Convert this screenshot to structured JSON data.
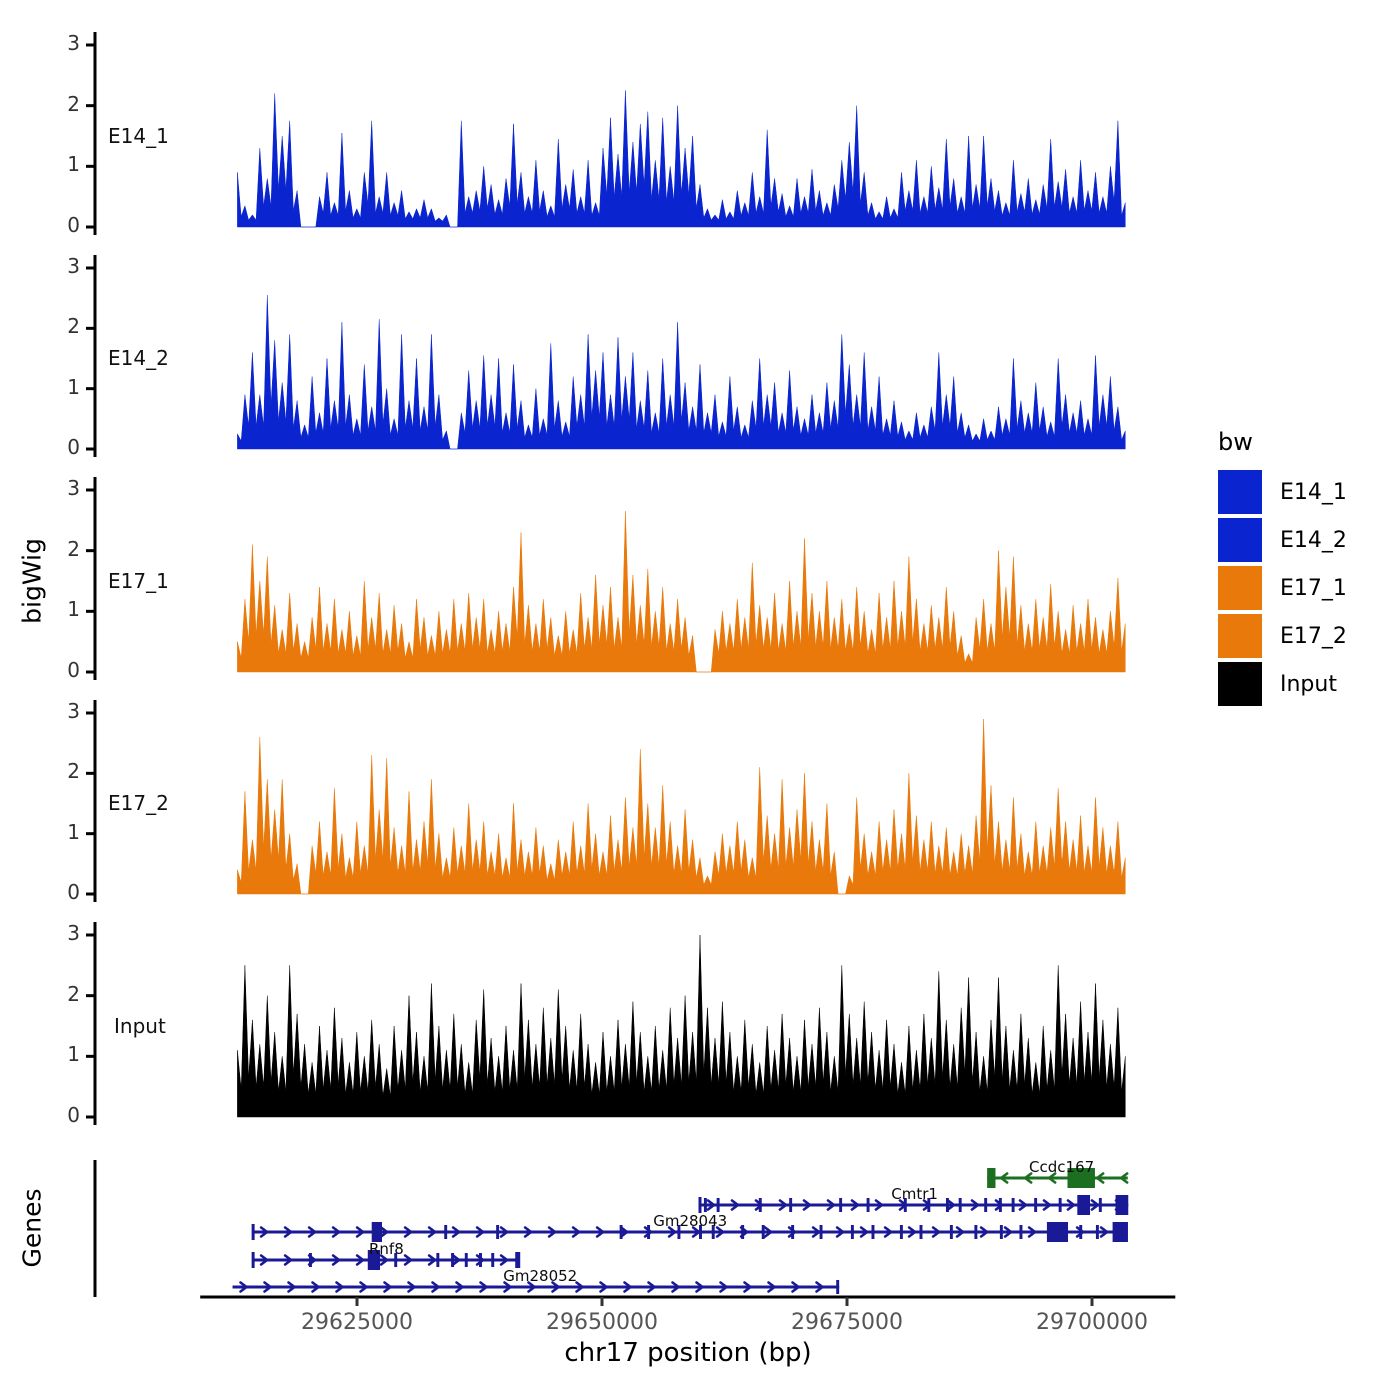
{
  "y_axis_title": "bigWig",
  "genes_panel_title": "Genes",
  "x_axis": {
    "title": "chr17 position (bp)",
    "range_bp": [
      29609000,
      29708500
    ],
    "ticks": [
      {
        "bp": 29625000,
        "label": "29625000"
      },
      {
        "bp": 29650000,
        "label": "29650000"
      },
      {
        "bp": 29675000,
        "label": "29675000"
      },
      {
        "bp": 29700000,
        "label": "29700000"
      }
    ]
  },
  "legend": {
    "title": "bw",
    "items": [
      {
        "label": "E14_1",
        "color": "#0a25d0"
      },
      {
        "label": "E14_2",
        "color": "#0a25d0"
      },
      {
        "label": "E17_1",
        "color": "#e8790a"
      },
      {
        "label": "E17_2",
        "color": "#e8790a"
      },
      {
        "label": "Input",
        "color": "#000000"
      }
    ]
  },
  "chart_data": {
    "type": "area",
    "title": "",
    "ylabel": "bigWig",
    "xlabel": "chr17 position (bp)",
    "ylim": [
      0,
      3.2
    ],
    "y_ticks": [
      0,
      1,
      2,
      3
    ],
    "grid": false,
    "legend_position": "right",
    "signal_x_start_bp": 29612800,
    "signal_x_end_bp": 29703400,
    "tracks": [
      {
        "name": "E14_1",
        "color": "#0a25d0",
        "values": [
          0.9,
          0.35,
          0.2,
          1.3,
          0.8,
          2.2,
          1.5,
          1.75,
          0.6,
          0,
          0,
          0.5,
          0.9,
          0.4,
          1.55,
          0.6,
          0.3,
          0.9,
          1.75,
          0.5,
          0.9,
          0.4,
          0.6,
          0.25,
          0.3,
          0.45,
          0.3,
          0.15,
          0.2,
          0,
          1.75,
          0.5,
          0.6,
          1.0,
          0.7,
          0.45,
          0.8,
          1.7,
          0.9,
          0.5,
          1.1,
          0.6,
          0.35,
          1.45,
          0.7,
          0.95,
          0.5,
          1.1,
          0.4,
          1.3,
          1.8,
          1.2,
          2.25,
          1.4,
          1.7,
          1.9,
          1.1,
          1.8,
          1.0,
          2.0,
          1.3,
          1.5,
          0.7,
          0.3,
          0.2,
          0.45,
          0.25,
          0.6,
          0.4,
          0.9,
          0.5,
          1.6,
          0.8,
          0.55,
          0.35,
          0.8,
          0.5,
          0.95,
          0.6,
          0.4,
          0.7,
          1.1,
          1.4,
          2.0,
          0.9,
          0.4,
          0.25,
          0.5,
          0.3,
          0.9,
          0.6,
          1.1,
          0.5,
          1.0,
          0.65,
          1.45,
          0.8,
          0.5,
          1.5,
          0.7,
          1.5,
          0.8,
          0.6,
          0.4,
          1.1,
          0.55,
          0.8,
          0.45,
          0.7,
          1.45,
          0.75,
          0.95,
          0.5,
          1.1,
          0.6,
          0.9,
          0.5,
          1.0,
          1.75,
          0.4
        ]
      },
      {
        "name": "E14_2",
        "color": "#0a25d0",
        "values": [
          0.25,
          0.9,
          1.6,
          0.9,
          2.55,
          1.8,
          1.1,
          1.9,
          0.8,
          0.4,
          1.2,
          0.6,
          1.5,
          0.8,
          2.1,
          0.9,
          0.5,
          1.4,
          0.7,
          2.15,
          1.0,
          0.5,
          1.9,
          0.8,
          1.5,
          0.7,
          1.9,
          0.9,
          0.3,
          0,
          0.6,
          1.3,
          0.8,
          1.55,
          0.9,
          1.5,
          0.6,
          1.4,
          0.8,
          0.4,
          1.0,
          0.5,
          1.75,
          0.8,
          0.45,
          1.2,
          0.9,
          1.9,
          1.3,
          1.6,
          0.9,
          1.85,
          1.2,
          1.6,
          0.8,
          1.3,
          0.6,
          1.5,
          0.9,
          2.1,
          1.1,
          0.7,
          1.4,
          0.6,
          0.9,
          0.45,
          1.2,
          0.7,
          0.4,
          0.8,
          1.5,
          0.9,
          1.1,
          0.6,
          1.3,
          0.7,
          0.5,
          0.9,
          0.6,
          1.1,
          0.8,
          1.9,
          1.4,
          0.9,
          1.6,
          0.7,
          1.2,
          0.5,
          0.8,
          0.45,
          0.3,
          0.6,
          0.4,
          0.7,
          1.6,
          0.9,
          1.2,
          0.6,
          0.4,
          0.25,
          0.5,
          0.3,
          0.7,
          0.5,
          1.5,
          0.8,
          0.6,
          1.1,
          0.7,
          0.45,
          1.5,
          0.9,
          0.6,
          0.8,
          0.5,
          1.55,
          0.9,
          1.2,
          0.7,
          0.3
        ]
      },
      {
        "name": "E17_1",
        "color": "#e8790a",
        "values": [
          0.5,
          1.2,
          2.1,
          1.5,
          1.9,
          1.1,
          0.7,
          1.3,
          0.8,
          0.5,
          0.9,
          1.4,
          0.8,
          1.2,
          0.7,
          1.0,
          0.6,
          1.5,
          0.9,
          1.3,
          0.7,
          1.1,
          0.8,
          0.5,
          1.2,
          0.9,
          0.6,
          1.0,
          0.7,
          1.2,
          0.8,
          1.3,
          0.9,
          1.2,
          0.7,
          1.0,
          0.8,
          1.4,
          2.3,
          1.1,
          0.8,
          1.2,
          0.9,
          0.6,
          1.0,
          0.7,
          1.3,
          0.9,
          1.6,
          1.1,
          1.4,
          0.9,
          2.65,
          1.6,
          1.1,
          1.7,
          1.0,
          1.4,
          0.8,
          1.2,
          0.9,
          0.6,
          0,
          0,
          0.7,
          1.0,
          0.8,
          1.2,
          0.9,
          1.8,
          1.1,
          0.9,
          1.3,
          0.8,
          1.5,
          1.0,
          2.2,
          1.3,
          1.0,
          1.5,
          0.9,
          1.2,
          0.8,
          1.4,
          1.0,
          0.7,
          1.3,
          0.9,
          1.5,
          1.0,
          1.9,
          1.2,
          0.8,
          1.1,
          0.9,
          1.4,
          1.0,
          0.6,
          0.3,
          0.9,
          1.2,
          0.8,
          2.0,
          1.4,
          1.9,
          1.1,
          0.8,
          1.2,
          0.9,
          1.45,
          1.0,
          0.7,
          1.1,
          0.8,
          1.2,
          0.9,
          0.7,
          1.0,
          1.55,
          0.8
        ]
      },
      {
        "name": "E17_2",
        "color": "#e8790a",
        "values": [
          0.4,
          1.7,
          0.9,
          2.6,
          1.9,
          1.4,
          1.9,
          1.0,
          0.5,
          0,
          0.8,
          1.2,
          0.7,
          1.75,
          1.0,
          0.6,
          1.2,
          0.8,
          2.3,
          1.4,
          2.25,
          1.1,
          0.8,
          1.7,
          0.9,
          1.2,
          1.9,
          1.0,
          0.6,
          1.1,
          0.8,
          1.5,
          0.9,
          1.2,
          0.7,
          1.0,
          0.6,
          1.5,
          0.9,
          0.7,
          1.1,
          0.8,
          0.5,
          0.9,
          0.7,
          1.2,
          0.8,
          1.5,
          1.0,
          0.7,
          1.3,
          0.9,
          1.6,
          1.1,
          2.4,
          1.5,
          1.1,
          1.8,
          1.2,
          0.8,
          1.4,
          0.9,
          0.6,
          0.3,
          0.7,
          1.0,
          0.8,
          1.2,
          0.9,
          0.6,
          2.1,
          1.3,
          1.0,
          1.9,
          1.1,
          1.4,
          2.0,
          1.2,
          0.9,
          1.5,
          0.7,
          0,
          0.3,
          1.6,
          1.0,
          0.7,
          1.2,
          0.9,
          1.4,
          1.0,
          2.0,
          1.3,
          0.9,
          1.2,
          0.8,
          1.1,
          0.7,
          1.0,
          0.8,
          1.3,
          2.9,
          1.8,
          1.2,
          0.9,
          1.6,
          1.0,
          0.7,
          1.2,
          0.8,
          1.1,
          1.75,
          1.2,
          0.9,
          1.3,
          0.8,
          1.6,
          1.1,
          0.8,
          1.2,
          0.6
        ]
      },
      {
        "name": "Input",
        "color": "#000000",
        "values": [
          1.1,
          2.5,
          1.6,
          1.2,
          2.0,
          1.4,
          1.0,
          2.5,
          1.7,
          1.2,
          0.9,
          1.5,
          1.1,
          1.8,
          1.3,
          0.9,
          1.4,
          1.0,
          1.6,
          1.2,
          0.8,
          1.5,
          1.1,
          2.0,
          1.4,
          1.0,
          2.2,
          1.5,
          1.1,
          1.7,
          1.2,
          0.9,
          1.6,
          2.1,
          1.3,
          1.0,
          1.5,
          1.1,
          2.2,
          1.6,
          1.2,
          1.8,
          1.3,
          2.1,
          1.5,
          1.1,
          1.7,
          1.2,
          0.9,
          1.4,
          1.0,
          1.6,
          1.2,
          1.9,
          1.4,
          1.0,
          1.5,
          1.1,
          1.8,
          1.3,
          2.0,
          1.4,
          3.0,
          1.8,
          1.3,
          1.9,
          1.4,
          1.0,
          1.6,
          1.2,
          0.9,
          1.5,
          1.1,
          1.7,
          1.3,
          1.0,
          1.6,
          1.2,
          1.8,
          1.4,
          1.0,
          2.5,
          1.7,
          1.3,
          1.9,
          1.4,
          1.1,
          1.6,
          1.2,
          0.9,
          1.5,
          1.1,
          1.7,
          1.3,
          2.4,
          1.6,
          1.2,
          1.8,
          2.3,
          1.4,
          1.0,
          1.6,
          2.3,
          1.5,
          1.1,
          1.7,
          1.3,
          0.9,
          1.5,
          1.1,
          2.5,
          1.7,
          1.3,
          1.9,
          1.4,
          2.2,
          1.6,
          1.2,
          1.8,
          1.0
        ]
      }
    ],
    "genes": [
      {
        "name": "Ccdc167",
        "color": "#1c6e21",
        "strand": "-",
        "start_bp": 29689300,
        "end_bp": 29703650,
        "label_bp": 29696900,
        "start_bar": false,
        "end_bar": false,
        "exons": [
          [
            29689300,
            29690150
          ],
          [
            29697500,
            29700300
          ]
        ]
      },
      {
        "name": "Cmtr1",
        "color": "#1a1a96",
        "strand": "+",
        "start_bp": 29660000,
        "end_bp": 29703700,
        "label_bp": 29681900,
        "start_bar": true,
        "end_bar": false,
        "exons": [
          [
            29660400,
            29660700
          ],
          [
            29661700,
            29662000
          ],
          [
            29666000,
            29666300
          ],
          [
            29669100,
            29669400
          ],
          [
            29674200,
            29674500
          ],
          [
            29677000,
            29677300
          ],
          [
            29680800,
            29681100
          ],
          [
            29683200,
            29683500
          ],
          [
            29685100,
            29685400
          ],
          [
            29686400,
            29686700
          ],
          [
            29689000,
            29689300
          ],
          [
            29690500,
            29690800
          ],
          [
            29691800,
            29692100
          ],
          [
            29694100,
            29694400
          ],
          [
            29696600,
            29696900
          ],
          [
            29698500,
            29699800
          ],
          [
            29700700,
            29701000
          ],
          [
            29702400,
            29703700
          ]
        ]
      },
      {
        "name": "Gm28043",
        "color": "#1a1a96",
        "strand": "+",
        "start_bp": 29614400,
        "end_bp": 29703670,
        "label_bp": 29659000,
        "start_bar": true,
        "end_bar": false,
        "exons": [
          [
            29626500,
            29627550
          ],
          [
            29633900,
            29634200
          ],
          [
            29639200,
            29639500
          ],
          [
            29651800,
            29652100
          ],
          [
            29654600,
            29654900
          ],
          [
            29657700,
            29658000
          ],
          [
            29659900,
            29660200
          ],
          [
            29661200,
            29661500
          ],
          [
            29664200,
            29664500
          ],
          [
            29666300,
            29666600
          ],
          [
            29669300,
            29669600
          ],
          [
            29672200,
            29672500
          ],
          [
            29675400,
            29675700
          ],
          [
            29677500,
            29677800
          ],
          [
            29680400,
            29680700
          ],
          [
            29682400,
            29682700
          ],
          [
            29685500,
            29685800
          ],
          [
            29688000,
            29688300
          ],
          [
            29690600,
            29690900
          ],
          [
            29692600,
            29692900
          ],
          [
            29695400,
            29697550
          ],
          [
            29698700,
            29699000
          ],
          [
            29700400,
            29700700
          ],
          [
            29702100,
            29703670
          ]
        ]
      },
      {
        "name": "Rnf8",
        "color": "#1a1a96",
        "strand": "+",
        "start_bp": 29614400,
        "end_bp": 29641400,
        "label_bp": 29628000,
        "start_bar": true,
        "end_bar": true,
        "exons": [
          [
            29620100,
            29620400
          ],
          [
            29626100,
            29627350
          ],
          [
            29628800,
            29629100
          ],
          [
            29633100,
            29633400
          ],
          [
            29634600,
            29634900
          ],
          [
            29636000,
            29636300
          ],
          [
            29637450,
            29637750
          ],
          [
            29638700,
            29639000
          ]
        ]
      },
      {
        "name": "Gm28052",
        "color": "#1a1a96",
        "strand": "+",
        "start_bp": 29612300,
        "end_bp": 29674200,
        "label_bp": 29643700,
        "start_bar": false,
        "end_bar": false,
        "exons": [
          [
            29673900,
            29674200
          ]
        ]
      }
    ]
  }
}
